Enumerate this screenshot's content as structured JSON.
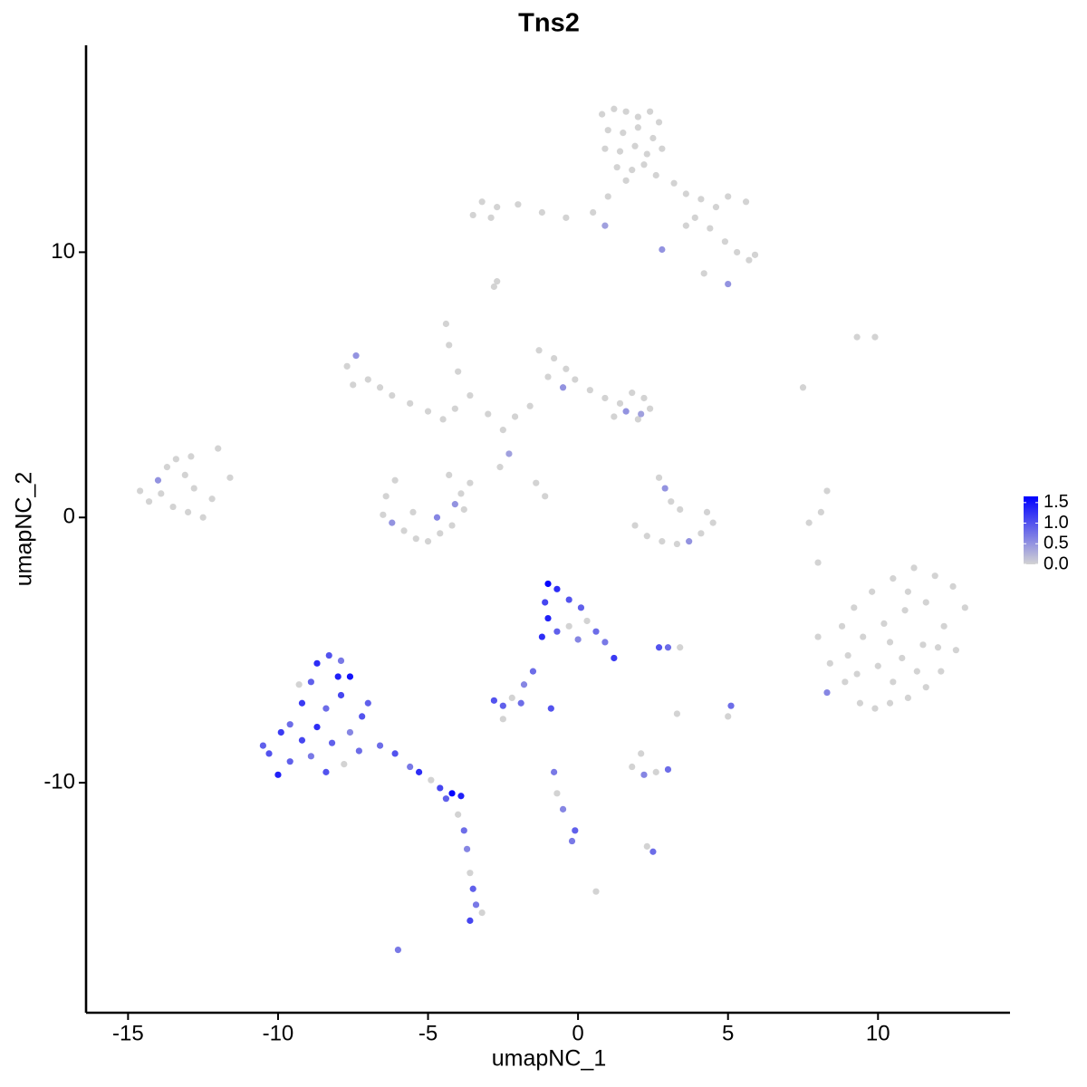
{
  "chart_data": {
    "type": "scatter",
    "title": "Tns2",
    "x_label": "umapNC_1",
    "y_label": "umapNC_2",
    "xlim": [
      -16.4,
      14.4
    ],
    "ylim": [
      -18.67,
      17.8
    ],
    "xticks": [
      -15,
      -10,
      -5,
      0,
      5,
      10
    ],
    "yticks": [
      -10,
      0,
      10
    ],
    "color_low": "#d3d3d3",
    "color_high": "#0000ff",
    "colorlim": [
      0,
      1.65
    ],
    "colorbar_ticks": [
      {
        "value": 0,
        "label": "0.0"
      },
      {
        "value": 0.5,
        "label": "0.5"
      },
      {
        "value": 1,
        "label": "1.0"
      },
      {
        "value": 1.5,
        "label": "1.5"
      }
    ],
    "series": [
      {
        "x": [
          0.8,
          1.2,
          1.6,
          2.0,
          2.4,
          2.7,
          1.0,
          1.5,
          2.0,
          2.5,
          0.9,
          1.4,
          1.9,
          2.3,
          2.8,
          1.3,
          1.8,
          2.2,
          1.6,
          2.6,
          3.2,
          3.6,
          4.1,
          4.6,
          5.0,
          5.6,
          3.9,
          4.4,
          4.9,
          5.3,
          5.7,
          5.9,
          1.0,
          0.5,
          -0.4,
          -1.2,
          -2.0,
          -2.7,
          -3.2,
          -3.5,
          -2.9,
          3.6,
          4.2,
          5.0,
          0.9,
          2.8,
          -2.8,
          -2.7,
          -7.7,
          -7.4,
          -7.0,
          -6.6,
          -6.2,
          -5.6,
          -5.0,
          -4.5,
          -4.1,
          -7.5,
          -4.4,
          -4.3,
          -4.0,
          -3.6,
          -3.0,
          -1.3,
          -0.8,
          -0.4,
          -1.0,
          -0.5,
          -0.1,
          0.4,
          0.9,
          1.4,
          1.8,
          2.2,
          2.4,
          2.0,
          1.6,
          2.1,
          1.2,
          -1.6,
          -2.1,
          -2.5,
          -2.3,
          -2.6,
          -1.4,
          -1.1,
          -14.6,
          -14.3,
          -14.0,
          -13.7,
          -13.4,
          -13.1,
          -12.8,
          -13.5,
          -13.0,
          -12.5,
          -12.2,
          -12.0,
          -11.6,
          -13.9,
          -12.9,
          -6.1,
          -6.4,
          -6.5,
          -6.2,
          -5.8,
          -5.4,
          -5.0,
          -4.6,
          -4.2,
          -3.8,
          -3.9,
          -4.1,
          -4.7,
          -5.5,
          -3.6,
          -4.3,
          2.7,
          2.9,
          3.1,
          3.4,
          1.9,
          2.3,
          2.8,
          3.3,
          3.7,
          4.1,
          4.5,
          4.3,
          9.3,
          9.9,
          7.5,
          8.3,
          8.1,
          7.7,
          8.0,
          8.0,
          8.4,
          8.9,
          9.4,
          9.9,
          10.4,
          11.0,
          11.6,
          12.1,
          12.6,
          12.9,
          12.5,
          11.9,
          11.2,
          10.5,
          9.8,
          9.2,
          8.8,
          9.5,
          10.2,
          10.9,
          11.6,
          12.2,
          11.5,
          10.8,
          10.0,
          9.3,
          10.5,
          11.3,
          12.0,
          10.4,
          11.0,
          8.3,
          9.0,
          -10.3,
          -10.0,
          -9.6,
          -9.2,
          -9.6,
          -9.2,
          -8.9,
          -8.7,
          -8.3,
          -7.9,
          -7.6,
          -7.9,
          -8.4,
          -8.7,
          -8.2,
          -7.6,
          -7.2,
          -8.9,
          -8.4,
          -7.8,
          -7.3,
          -9.9,
          -10.5,
          -9.3,
          -7.0,
          -8.0,
          -6.6,
          -6.1,
          -5.6,
          -5.3,
          -4.9,
          -4.6,
          -4.2,
          -3.9,
          -4.4,
          -4.0,
          -3.8,
          -3.7,
          -3.6,
          -3.5,
          -3.4,
          -3.2,
          -3.6,
          -6.0,
          -1.0,
          -0.7,
          -0.3,
          0.1,
          0.3,
          0.6,
          0.9,
          1.2,
          -1.1,
          -1.0,
          -0.7,
          -0.3,
          -1.2,
          0.0,
          -1.5,
          -1.8,
          -2.8,
          -2.5,
          -2.2,
          -1.9,
          -2.5,
          -0.9,
          2.7,
          3.0,
          3.4,
          5.1,
          5.0,
          3.3,
          -0.8,
          -0.7,
          -0.5,
          -0.1,
          -0.2,
          1.8,
          2.2,
          2.6,
          3.0,
          2.1,
          2.3,
          2.5,
          0.6
        ],
        "y": [
          15.2,
          15.4,
          15.3,
          15.1,
          15.3,
          14.9,
          14.6,
          14.5,
          14.7,
          14.3,
          13.9,
          13.8,
          14.0,
          13.7,
          13.9,
          13.2,
          13.1,
          13.3,
          12.7,
          12.9,
          12.6,
          12.2,
          12.0,
          11.7,
          12.1,
          11.9,
          11.3,
          10.9,
          10.4,
          10.0,
          9.7,
          9.9,
          12.1,
          11.5,
          11.3,
          11.5,
          11.8,
          11.7,
          11.9,
          11.4,
          11.3,
          11.0,
          9.2,
          8.8,
          11.0,
          10.1,
          8.7,
          8.9,
          5.7,
          6.1,
          5.2,
          4.9,
          4.6,
          4.3,
          4.0,
          3.7,
          4.1,
          5.0,
          7.3,
          6.5,
          5.5,
          4.6,
          3.9,
          6.3,
          6.0,
          5.6,
          5.3,
          4.9,
          5.2,
          4.8,
          4.5,
          4.3,
          4.7,
          4.5,
          4.1,
          3.7,
          4.0,
          3.9,
          3.8,
          4.2,
          3.8,
          3.3,
          2.4,
          1.9,
          1.3,
          0.8,
          1.0,
          0.6,
          1.4,
          1.9,
          2.2,
          1.6,
          1.1,
          0.4,
          0.2,
          0.0,
          0.7,
          2.6,
          1.5,
          0.9,
          2.3,
          1.4,
          0.8,
          0.1,
          -0.2,
          -0.5,
          -0.8,
          -0.9,
          -0.6,
          -0.3,
          0.3,
          0.9,
          0.5,
          0.0,
          0.2,
          1.3,
          1.6,
          1.5,
          1.1,
          0.6,
          0.3,
          -0.3,
          -0.7,
          -0.9,
          -1.0,
          -0.9,
          -0.6,
          -0.2,
          0.2,
          6.8,
          6.8,
          4.9,
          1.0,
          0.2,
          -0.2,
          -1.7,
          -4.5,
          -5.5,
          -6.2,
          -7.0,
          -7.2,
          -7.0,
          -6.8,
          -6.4,
          -5.8,
          -5.0,
          -3.4,
          -2.6,
          -2.2,
          -1.9,
          -2.3,
          -2.8,
          -3.4,
          -4.1,
          -4.5,
          -4.0,
          -3.5,
          -3.2,
          -4.1,
          -4.8,
          -5.3,
          -5.6,
          -5.9,
          -6.2,
          -5.8,
          -4.9,
          -4.7,
          -2.8,
          -6.6,
          -5.2,
          -8.9,
          -9.7,
          -9.2,
          -8.4,
          -7.8,
          -7.0,
          -6.2,
          -5.5,
          -5.2,
          -5.4,
          -6.0,
          -6.7,
          -7.2,
          -7.9,
          -8.5,
          -8.1,
          -7.5,
          -9.0,
          -9.6,
          -9.3,
          -8.8,
          -8.1,
          -8.6,
          -6.3,
          -7.0,
          -6.0,
          -8.6,
          -8.9,
          -9.4,
          -9.6,
          -9.9,
          -10.2,
          -10.4,
          -10.5,
          -10.6,
          -11.2,
          -11.8,
          -12.5,
          -13.4,
          -14.0,
          -14.6,
          -14.9,
          -15.2,
          -16.3,
          -2.5,
          -2.7,
          -3.1,
          -3.4,
          -3.9,
          -4.3,
          -4.7,
          -5.3,
          -3.2,
          -3.8,
          -4.3,
          -4.1,
          -4.5,
          -4.6,
          -5.8,
          -6.3,
          -6.9,
          -7.1,
          -6.8,
          -7.0,
          -7.6,
          -7.2,
          -4.9,
          -4.9,
          -4.9,
          -7.1,
          -7.5,
          -7.4,
          -9.6,
          -10.4,
          -11.0,
          -11.8,
          -12.2,
          -9.4,
          -9.7,
          -9.6,
          -9.5,
          -8.9,
          -12.4,
          -12.6,
          -14.1
        ],
        "values": [
          0,
          0,
          0,
          0,
          0,
          0,
          0,
          0,
          0,
          0,
          0,
          0,
          0,
          0,
          0,
          0,
          0,
          0,
          0,
          0,
          0,
          0,
          0,
          0,
          0,
          0,
          0,
          0,
          0,
          0,
          0,
          0,
          0,
          0,
          0,
          0,
          0,
          0,
          0,
          0,
          0,
          0,
          0,
          0.5,
          0.4,
          0.5,
          0,
          0,
          0,
          0.5,
          0,
          0,
          0,
          0,
          0,
          0,
          0,
          0,
          0,
          0,
          0,
          0,
          0,
          0,
          0,
          0,
          0,
          0.5,
          0,
          0,
          0,
          0,
          0,
          0,
          0,
          0,
          0.5,
          0.4,
          0,
          0,
          0,
          0,
          0.4,
          0,
          0,
          0,
          0,
          0,
          0.5,
          0,
          0,
          0,
          0,
          0,
          0,
          0,
          0,
          0,
          0,
          0,
          0,
          0,
          0,
          0,
          0.5,
          0,
          0,
          0,
          0,
          0,
          0,
          0,
          0.5,
          0.6,
          0,
          0,
          0,
          0,
          0.5,
          0,
          0,
          0,
          0,
          0,
          0,
          0.5,
          0,
          0,
          0,
          0,
          0,
          0,
          0,
          0,
          0,
          0,
          0,
          0,
          0,
          0,
          0,
          0,
          0,
          0,
          0,
          0,
          0,
          0,
          0,
          0,
          0,
          0,
          0,
          0,
          0,
          0,
          0,
          0,
          0,
          0,
          0,
          0,
          0,
          0,
          0,
          0,
          0,
          0,
          0.6,
          0,
          1.0,
          1.4,
          0.9,
          1.1,
          0.8,
          1.2,
          0.9,
          1.3,
          1.0,
          0.7,
          1.5,
          1.1,
          0.8,
          1.3,
          0.9,
          0.6,
          1.0,
          0.7,
          1.0,
          0,
          0.8,
          1.2,
          0.9,
          0,
          0.9,
          1.4,
          0.8,
          1.0,
          0.7,
          1.3,
          0,
          1.1,
          1.6,
          1.4,
          0.9,
          0,
          0.8,
          0.6,
          0,
          0.9,
          0.7,
          0,
          1.1,
          0.7,
          1.6,
          1.3,
          1.0,
          0.9,
          0,
          0.8,
          0.7,
          1.2,
          1.1,
          1.4,
          0.9,
          0,
          1.3,
          0.6,
          0.8,
          0.6,
          1.0,
          0.9,
          0,
          0.8,
          0,
          1.0,
          1.0,
          0.8,
          0,
          0.8,
          0,
          0,
          0.7,
          0,
          0.6,
          0.9,
          0.7,
          0,
          0.6,
          0,
          0.8,
          0,
          0,
          0.8,
          0
        ]
      }
    ]
  }
}
